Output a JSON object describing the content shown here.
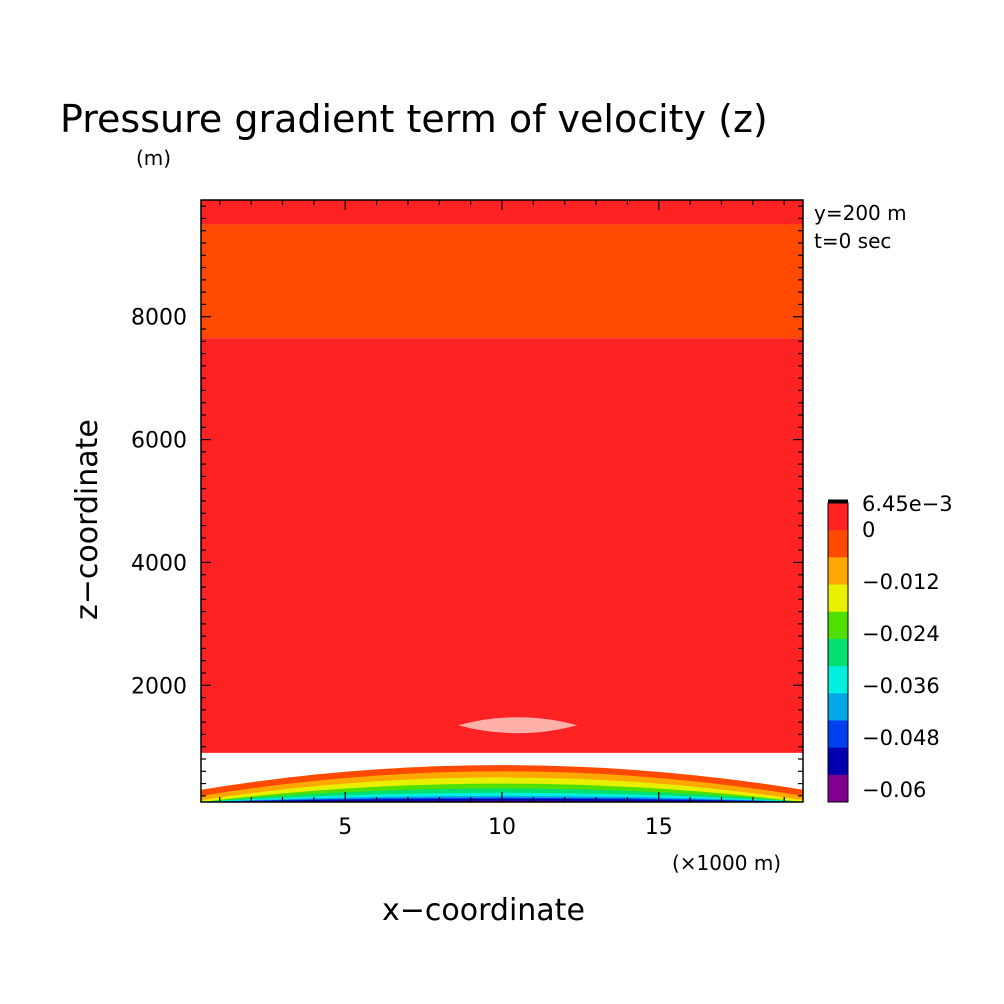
{
  "chart_data": {
    "type": "heatmap",
    "title": "Pressure gradient term of velocity (z)",
    "y_unit_label": "(m)",
    "x_unit_label": "(×1000 m)",
    "xlabel": "x−coordinate",
    "ylabel": "z−coordinate",
    "annotations": [
      "y=200 m",
      "t=0 sec"
    ],
    "xlim": [
      0.4,
      19.6
    ],
    "ylim": [
      100,
      9900
    ],
    "x_ticks": [
      "5",
      "10",
      "15"
    ],
    "x_tick_values": [
      5,
      10,
      15
    ],
    "y_ticks": [
      "2000",
      "4000",
      "6000",
      "8000"
    ],
    "y_tick_values": [
      2000,
      4000,
      6000,
      8000
    ],
    "colorbar": {
      "labels": [
        "6.45e−3",
        "0",
        "−0.012",
        "−0.024",
        "−0.036",
        "−0.048",
        "−0.06"
      ],
      "colors": [
        "#ff2222",
        "#ff4a00",
        "#ffa800",
        "#e8f000",
        "#50e000",
        "#00e070",
        "#00f0e0",
        "#00a8e8",
        "#0040f0",
        "#0000b0",
        "#800090"
      ],
      "top_line_color": "#000000"
    },
    "contour_bands": [
      {
        "color": "#ff2222",
        "z_low": 9500,
        "z_high": 9900
      },
      {
        "color": "#ff4a00",
        "z_low": 7650,
        "z_high": 9500
      },
      {
        "color": "#ff2222",
        "z_low": 900,
        "z_high": 7650
      },
      {
        "color": "#ff4a00",
        "z_edge": 300,
        "z_center": 700
      },
      {
        "color": "#ffa800",
        "z_edge": 200,
        "z_center": 600
      },
      {
        "color": "#e8f000",
        "z_edge": 130,
        "z_center": 500
      },
      {
        "color": "#50e000",
        "z_edge": 100,
        "z_center": 400
      },
      {
        "color": "#00e070",
        "z_edge": 100,
        "z_center": 320
      },
      {
        "color": "#00f0e0",
        "z_edge": 100,
        "z_center": 250
      },
      {
        "color": "#00a8e8",
        "z_edge": 100,
        "z_center": 200
      },
      {
        "color": "#0040f0",
        "z_edge": 100,
        "z_center": 170
      },
      {
        "color": "#0000b0",
        "z_edge": 100,
        "z_center": 150
      },
      {
        "color": "#800090",
        "z_edge": 100,
        "z_center": 120
      }
    ],
    "max_region": {
      "color": "#ffb0a8",
      "x_range": [
        8.6,
        12.4
      ],
      "z_center": 1350
    }
  }
}
